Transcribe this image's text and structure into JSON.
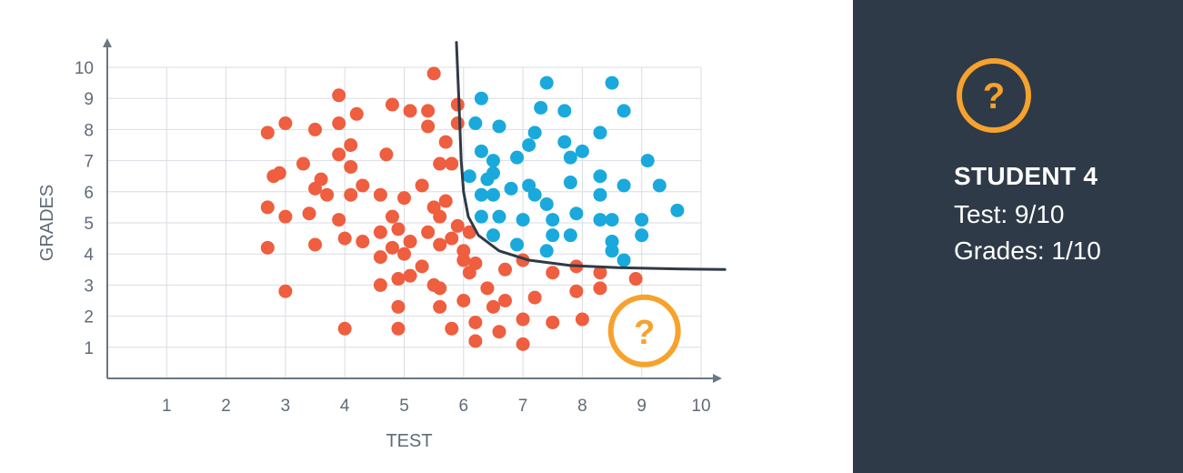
{
  "colors": {
    "fail": "#ee5e3f",
    "pass": "#1aa9dc",
    "accent": "#f7a22d",
    "panel": "#2e3a47",
    "boundary": "#2f3a46",
    "grid": "#d8dde2",
    "axis": "#6b7782"
  },
  "unknown_marker_icon": "question-circle-icon",
  "side_panel": {
    "icon": "question-circle-icon",
    "question_mark": "?",
    "title": "STUDENT 4",
    "test_line": "Test: 9/10",
    "grades_line": "Grades: 1/10"
  },
  "chart_data": {
    "type": "scatter",
    "title": "",
    "xlabel": "TEST",
    "ylabel": "GRADES",
    "xlim": [
      0,
      10
    ],
    "ylim": [
      0,
      10
    ],
    "xticks": [
      "1",
      "2",
      "3",
      "4",
      "5",
      "6",
      "7",
      "8",
      "9",
      "10"
    ],
    "yticks": [
      "1",
      "2",
      "3",
      "4",
      "5",
      "6",
      "7",
      "8",
      "9",
      "10"
    ],
    "grid": true,
    "series": [
      {
        "color": "#ee5e3f",
        "points": [
          [
            2.7,
            7.9
          ],
          [
            3.0,
            8.2
          ],
          [
            3.5,
            8.0
          ],
          [
            3.9,
            9.1
          ],
          [
            3.9,
            8.2
          ],
          [
            4.1,
            7.5
          ],
          [
            4.2,
            8.5
          ],
          [
            2.8,
            6.5
          ],
          [
            2.9,
            6.6
          ],
          [
            3.3,
            6.9
          ],
          [
            3.5,
            6.1
          ],
          [
            3.6,
            6.4
          ],
          [
            3.7,
            5.9
          ],
          [
            3.9,
            7.2
          ],
          [
            4.1,
            6.8
          ],
          [
            4.1,
            5.9
          ],
          [
            4.3,
            6.2
          ],
          [
            2.7,
            5.5
          ],
          [
            3.0,
            5.2
          ],
          [
            3.4,
            5.3
          ],
          [
            3.9,
            5.1
          ],
          [
            2.7,
            4.2
          ],
          [
            3.5,
            4.3
          ],
          [
            4.0,
            4.5
          ],
          [
            4.3,
            4.4
          ],
          [
            4.6,
            3.9
          ],
          [
            4.6,
            4.7
          ],
          [
            4.6,
            5.9
          ],
          [
            4.7,
            7.2
          ],
          [
            4.8,
            8.8
          ],
          [
            5.1,
            8.6
          ],
          [
            5.4,
            8.1
          ],
          [
            5.4,
            8.6
          ],
          [
            5.5,
            9.8
          ],
          [
            5.9,
            8.8
          ],
          [
            5.9,
            8.2
          ],
          [
            5.7,
            7.6
          ],
          [
            5.6,
            6.9
          ],
          [
            5.3,
            6.2
          ],
          [
            5.0,
            5.8
          ],
          [
            4.8,
            5.2
          ],
          [
            4.9,
            4.8
          ],
          [
            5.1,
            4.4
          ],
          [
            5.4,
            4.7
          ],
          [
            5.5,
            5.5
          ],
          [
            5.6,
            5.2
          ],
          [
            5.7,
            5.7
          ],
          [
            5.8,
            4.5
          ],
          [
            5.6,
            4.3
          ],
          [
            6.0,
            4.1
          ],
          [
            6.1,
            4.7
          ],
          [
            5.0,
            4.0
          ],
          [
            4.8,
            4.2
          ],
          [
            5.1,
            3.3
          ],
          [
            5.3,
            3.6
          ],
          [
            5.5,
            3.0
          ],
          [
            4.6,
            3.0
          ],
          [
            4.9,
            3.2
          ],
          [
            3.0,
            2.8
          ],
          [
            5.6,
            2.9
          ],
          [
            5.6,
            2.3
          ],
          [
            4.9,
            2.3
          ],
          [
            6.0,
            2.5
          ],
          [
            6.1,
            3.4
          ],
          [
            6.2,
            3.7
          ],
          [
            6.4,
            2.9
          ],
          [
            6.5,
            2.3
          ],
          [
            6.7,
            2.5
          ],
          [
            6.7,
            3.5
          ],
          [
            7.0,
            3.8
          ],
          [
            7.2,
            2.6
          ],
          [
            7.5,
            3.4
          ],
          [
            7.9,
            3.6
          ],
          [
            8.3,
            3.4
          ],
          [
            8.9,
            3.2
          ],
          [
            7.9,
            2.8
          ],
          [
            8.3,
            2.9
          ],
          [
            4.0,
            1.6
          ],
          [
            4.9,
            1.6
          ],
          [
            5.8,
            1.6
          ],
          [
            6.2,
            1.8
          ],
          [
            6.2,
            1.2
          ],
          [
            6.6,
            1.5
          ],
          [
            7.0,
            1.9
          ],
          [
            7.0,
            1.1
          ],
          [
            7.5,
            1.8
          ],
          [
            8.0,
            1.9
          ],
          [
            6.0,
            3.8
          ],
          [
            5.9,
            4.9
          ],
          [
            5.8,
            6.9
          ]
        ]
      },
      {
        "color": "#1aa9dc",
        "points": [
          [
            6.3,
            9.0
          ],
          [
            7.4,
            9.5
          ],
          [
            8.5,
            9.5
          ],
          [
            6.2,
            8.2
          ],
          [
            6.6,
            8.1
          ],
          [
            7.3,
            8.7
          ],
          [
            7.7,
            8.6
          ],
          [
            8.7,
            8.6
          ],
          [
            7.2,
            7.9
          ],
          [
            8.3,
            7.9
          ],
          [
            6.3,
            7.3
          ],
          [
            6.5,
            7.0
          ],
          [
            6.9,
            7.1
          ],
          [
            7.1,
            7.5
          ],
          [
            7.7,
            7.6
          ],
          [
            7.8,
            7.1
          ],
          [
            8.0,
            7.3
          ],
          [
            9.1,
            7.0
          ],
          [
            6.1,
            6.5
          ],
          [
            6.4,
            6.4
          ],
          [
            6.5,
            6.6
          ],
          [
            6.8,
            6.1
          ],
          [
            7.1,
            6.2
          ],
          [
            7.2,
            5.9
          ],
          [
            7.8,
            6.3
          ],
          [
            8.3,
            6.5
          ],
          [
            8.7,
            6.2
          ],
          [
            6.3,
            5.9
          ],
          [
            6.5,
            5.9
          ],
          [
            7.4,
            5.6
          ],
          [
            8.3,
            5.9
          ],
          [
            9.3,
            6.2
          ],
          [
            9.6,
            5.4
          ],
          [
            6.3,
            5.2
          ],
          [
            6.6,
            5.2
          ],
          [
            7.0,
            5.1
          ],
          [
            7.5,
            5.1
          ],
          [
            7.9,
            5.3
          ],
          [
            8.3,
            5.1
          ],
          [
            8.5,
            5.1
          ],
          [
            9.0,
            5.1
          ],
          [
            6.5,
            4.6
          ],
          [
            6.9,
            4.3
          ],
          [
            7.4,
            4.1
          ],
          [
            7.5,
            4.6
          ],
          [
            7.8,
            4.6
          ],
          [
            8.5,
            4.4
          ],
          [
            8.5,
            4.1
          ],
          [
            8.7,
            3.8
          ],
          [
            9.0,
            4.6
          ]
        ]
      }
    ],
    "unknown_point": {
      "x": 9,
      "y": 1,
      "label": "?"
    },
    "decision_boundary": [
      [
        5.88,
        10.8
      ],
      [
        5.92,
        9.0
      ],
      [
        5.96,
        7.0
      ],
      [
        6.0,
        6.0
      ],
      [
        6.08,
        5.2
      ],
      [
        6.25,
        4.6
      ],
      [
        6.6,
        4.1
      ],
      [
        7.1,
        3.8
      ],
      [
        7.8,
        3.63
      ],
      [
        8.6,
        3.56
      ],
      [
        9.6,
        3.52
      ],
      [
        10.4,
        3.5
      ]
    ]
  }
}
